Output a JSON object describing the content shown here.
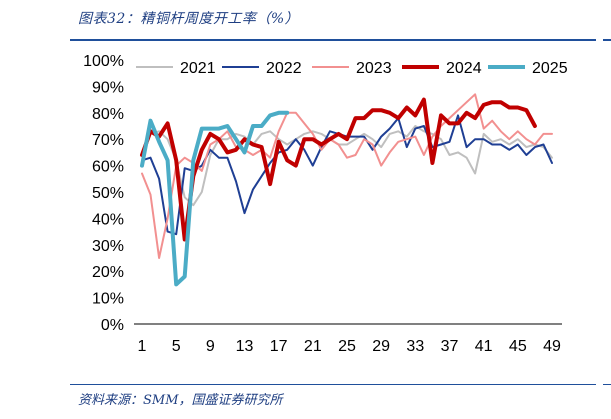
{
  "header": {
    "title": "图表32：精铜杆周度开工率（%）"
  },
  "footer": {
    "source": "资料来源：SMM，国盛证券研究所"
  },
  "colors": {
    "rule": "#1f4f9b",
    "title": "#1f3f82"
  },
  "chart_data": {
    "type": "line",
    "title": "",
    "xlabel": "",
    "ylabel": "",
    "x": [
      1,
      2,
      3,
      4,
      5,
      6,
      7,
      8,
      9,
      10,
      11,
      12,
      13,
      14,
      15,
      16,
      17,
      18,
      19,
      20,
      21,
      22,
      23,
      24,
      25,
      26,
      27,
      28,
      29,
      30,
      31,
      32,
      33,
      34,
      35,
      36,
      37,
      38,
      39,
      40,
      41,
      42,
      43,
      44,
      45,
      46,
      47,
      48,
      49
    ],
    "xticks": [
      "1",
      "5",
      "9",
      "13",
      "17",
      "21",
      "25",
      "29",
      "33",
      "37",
      "41",
      "45",
      "49"
    ],
    "xlim": [
      1,
      49
    ],
    "ylim": [
      0,
      100
    ],
    "yticks": [
      "0%",
      "10%",
      "20%",
      "30%",
      "40%",
      "50%",
      "60%",
      "70%",
      "80%",
      "90%",
      "100%"
    ],
    "legend_position": "top",
    "series": [
      {
        "name": "2021",
        "color": "#bfbfbf",
        "values": [
          65,
          72,
          73,
          70,
          62,
          48,
          45,
          50,
          64,
          70,
          70,
          72,
          71,
          68,
          72,
          73,
          70,
          68,
          70,
          72,
          73,
          72,
          70,
          68,
          68,
          70,
          72,
          70,
          67,
          72,
          73,
          71,
          75,
          73,
          72,
          70,
          64,
          65,
          63,
          57,
          72,
          69,
          70,
          68,
          70,
          67,
          68,
          67,
          63
        ]
      },
      {
        "name": "2022",
        "color": "#1f3f94",
        "values": [
          62,
          63,
          55,
          35,
          34,
          59,
          58,
          60,
          66,
          63,
          63,
          54,
          42,
          51,
          56,
          61,
          65,
          66,
          70,
          66,
          60,
          67,
          73,
          72,
          71,
          71,
          71,
          66,
          71,
          74,
          78,
          67,
          74,
          75,
          67,
          68,
          69,
          79,
          67,
          70,
          70,
          68,
          68,
          66,
          68,
          64,
          67,
          68,
          61
        ]
      },
      {
        "name": "2023",
        "color": "#f29090",
        "values": [
          57,
          49,
          25,
          40,
          60,
          63,
          61,
          58,
          68,
          70,
          73,
          67,
          66,
          64,
          66,
          63,
          73,
          80,
          80,
          76,
          72,
          66,
          70,
          68,
          63,
          64,
          70,
          68,
          60,
          65,
          69,
          70,
          71,
          64,
          71,
          75,
          78,
          81,
          84,
          87,
          74,
          77,
          73,
          70,
          73,
          70,
          68,
          72,
          72
        ]
      },
      {
        "name": "2024",
        "color": "#c00000",
        "values": [
          64,
          73,
          71,
          76,
          62,
          32,
          56,
          66,
          72,
          70,
          65,
          66,
          70,
          68,
          67,
          53,
          69,
          62,
          60,
          70,
          70,
          68,
          70,
          72,
          70,
          78,
          78,
          81,
          81,
          80,
          78,
          82,
          79,
          85,
          61,
          79,
          76,
          76,
          80,
          78,
          83,
          84,
          84,
          82,
          82,
          81,
          75,
          null,
          null
        ]
      },
      {
        "name": "2025",
        "color": "#4bacc6",
        "values": [
          60,
          77,
          69,
          62,
          15,
          18,
          62,
          74,
          74,
          74,
          75,
          70,
          65,
          75,
          75,
          79,
          80,
          80,
          null,
          null,
          null,
          null,
          null,
          null,
          null,
          null,
          null,
          null,
          null,
          null,
          null,
          null,
          null,
          null,
          null,
          null,
          null,
          null,
          null,
          null,
          null,
          null,
          null,
          null,
          null,
          null,
          null,
          null,
          null
        ]
      }
    ]
  }
}
